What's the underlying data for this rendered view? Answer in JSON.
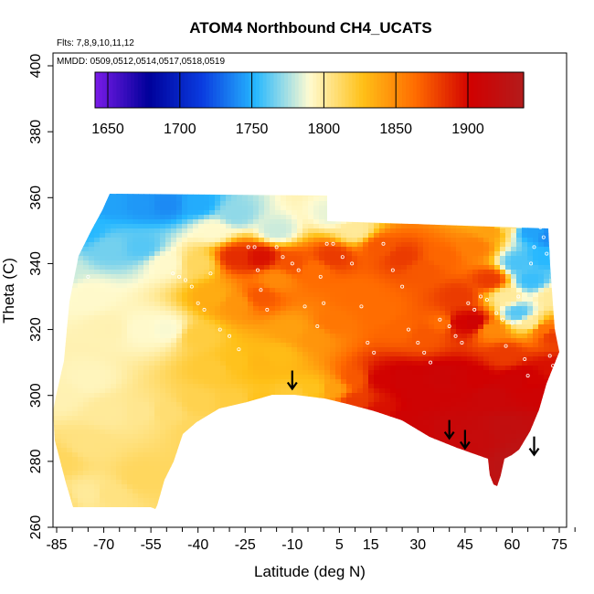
{
  "chart_data": {
    "type": "heatmap",
    "title": "ATOM4 Northbound CH4_UCATS",
    "subtitle_flights": "Flts: 7,8,9,10,11,12",
    "subtitle_dates": "MMDD: 0509,0512,0514,0517,0518,0519",
    "xlabel": "Latitude (deg N)",
    "ylabel": "Theta (C)",
    "xlim": [
      -88,
      82
    ],
    "ylim": [
      260,
      404
    ],
    "x_ticks": [
      -85,
      -70,
      -55,
      -40,
      -25,
      -10,
      5,
      15,
      30,
      45,
      60,
      75
    ],
    "x_minor_ticks": [
      -80,
      -75,
      -65,
      -60,
      -50,
      -45,
      -35,
      -30,
      -20,
      -15,
      -5,
      0,
      10,
      20,
      25,
      35,
      40,
      50,
      55,
      65,
      70,
      80
    ],
    "y_ticks": [
      260,
      280,
      300,
      320,
      340,
      360,
      380,
      400
    ],
    "colorbar": {
      "range": [
        1640,
        1938
      ],
      "ticks": [
        1650,
        1700,
        1750,
        1800,
        1850,
        1900
      ],
      "colors": [
        "#7a1be8",
        "#00009a",
        "#0a3ce0",
        "#26b8ff",
        "#fffbd0",
        "#ffc017",
        "#ff6a00",
        "#d10000",
        "#b31c1c"
      ]
    },
    "field_points": [
      [
        -84,
        338,
        1780
      ],
      [
        -84,
        300,
        1795
      ],
      [
        -84,
        280,
        1812
      ],
      [
        -84,
        268,
        1808
      ],
      [
        -75,
        350,
        1752
      ],
      [
        -75,
        330,
        1790
      ],
      [
        -75,
        305,
        1793
      ],
      [
        -75,
        285,
        1805
      ],
      [
        -75,
        270,
        1800
      ],
      [
        -68,
        358,
        1745
      ],
      [
        -68,
        345,
        1765
      ],
      [
        -68,
        320,
        1795
      ],
      [
        -68,
        295,
        1800
      ],
      [
        -68,
        270,
        1805
      ],
      [
        -58,
        358,
        1742
      ],
      [
        -58,
        345,
        1760
      ],
      [
        -58,
        320,
        1790
      ],
      [
        -58,
        295,
        1802
      ],
      [
        -58,
        275,
        1812
      ],
      [
        -50,
        358,
        1738
      ],
      [
        -50,
        340,
        1790
      ],
      [
        -50,
        320,
        1788
      ],
      [
        -50,
        295,
        1808
      ],
      [
        -40,
        358,
        1748
      ],
      [
        -40,
        340,
        1812
      ],
      [
        -40,
        318,
        1818
      ],
      [
        -40,
        298,
        1815
      ],
      [
        -40,
        290,
        1812
      ],
      [
        -35,
        350,
        1790
      ],
      [
        -35,
        330,
        1835
      ],
      [
        -35,
        308,
        1820
      ],
      [
        -28,
        355,
        1770
      ],
      [
        -28,
        342,
        1885
      ],
      [
        -28,
        328,
        1845
      ],
      [
        -28,
        310,
        1825
      ],
      [
        -28,
        298,
        1818
      ],
      [
        -20,
        342,
        1895
      ],
      [
        -20,
        330,
        1870
      ],
      [
        -20,
        310,
        1830
      ],
      [
        -20,
        298,
        1825
      ],
      [
        -15,
        350,
        1780
      ],
      [
        -15,
        335,
        1850
      ],
      [
        -15,
        312,
        1828
      ],
      [
        -10,
        340,
        1872
      ],
      [
        -10,
        320,
        1840
      ],
      [
        -10,
        300,
        1820
      ],
      [
        -3,
        338,
        1862
      ],
      [
        -3,
        318,
        1845
      ],
      [
        -3,
        302,
        1825
      ],
      [
        3,
        355,
        1785
      ],
      [
        3,
        342,
        1880
      ],
      [
        3,
        322,
        1858
      ],
      [
        3,
        302,
        1840
      ],
      [
        10,
        350,
        1800
      ],
      [
        10,
        330,
        1862
      ],
      [
        10,
        305,
        1870
      ],
      [
        10,
        298,
        1880
      ],
      [
        18,
        345,
        1870
      ],
      [
        18,
        325,
        1862
      ],
      [
        18,
        305,
        1900
      ],
      [
        18,
        295,
        1895
      ],
      [
        25,
        342,
        1880
      ],
      [
        25,
        320,
        1865
      ],
      [
        25,
        305,
        1905
      ],
      [
        25,
        292,
        1905
      ],
      [
        32,
        338,
        1870
      ],
      [
        32,
        318,
        1870
      ],
      [
        32,
        300,
        1905
      ],
      [
        32,
        290,
        1908
      ],
      [
        38,
        342,
        1865
      ],
      [
        38,
        322,
        1862
      ],
      [
        38,
        305,
        1908
      ],
      [
        38,
        290,
        1912
      ],
      [
        43,
        330,
        1880
      ],
      [
        43,
        322,
        1900
      ],
      [
        43,
        305,
        1905
      ],
      [
        43,
        288,
        1912
      ],
      [
        48,
        345,
        1855
      ],
      [
        48,
        322,
        1905
      ],
      [
        48,
        305,
        1902
      ],
      [
        48,
        288,
        1915
      ],
      [
        53,
        350,
        1840
      ],
      [
        53,
        335,
        1880
      ],
      [
        53,
        320,
        1850
      ],
      [
        53,
        300,
        1910
      ],
      [
        58,
        352,
        1810
      ],
      [
        58,
        330,
        1800
      ],
      [
        58,
        312,
        1880
      ],
      [
        58,
        290,
        1920
      ],
      [
        62,
        355,
        1775
      ],
      [
        62,
        340,
        1758
      ],
      [
        62,
        325,
        1760
      ],
      [
        62,
        305,
        1905
      ],
      [
        62,
        280,
        1928
      ],
      [
        66,
        350,
        1745
      ],
      [
        66,
        335,
        1755
      ],
      [
        66,
        322,
        1800
      ],
      [
        66,
        305,
        1900
      ],
      [
        66,
        285,
        1925
      ],
      [
        70,
        355,
        1725
      ],
      [
        70,
        342,
        1752
      ],
      [
        70,
        320,
        1860
      ],
      [
        70,
        300,
        1905
      ],
      [
        70,
        290,
        1918
      ],
      [
        73,
        348,
        1738
      ],
      [
        73,
        330,
        1800
      ],
      [
        73,
        318,
        1880
      ],
      [
        73,
        308,
        1895
      ]
    ],
    "sample_points": [
      [
        -75,
        336
      ],
      [
        -48,
        337
      ],
      [
        -46,
        336
      ],
      [
        -44,
        335
      ],
      [
        -42,
        333
      ],
      [
        -40,
        328
      ],
      [
        -38,
        326
      ],
      [
        -36,
        337
      ],
      [
        -33,
        320
      ],
      [
        -30,
        318
      ],
      [
        -27,
        314
      ],
      [
        -24,
        345
      ],
      [
        -22,
        345
      ],
      [
        -21,
        338
      ],
      [
        -20,
        332
      ],
      [
        -18,
        326
      ],
      [
        -15,
        345
      ],
      [
        -13,
        342
      ],
      [
        -10,
        340
      ],
      [
        -8,
        338
      ],
      [
        -6,
        327
      ],
      [
        -2,
        321
      ],
      [
        -1,
        336
      ],
      [
        0,
        328
      ],
      [
        1,
        346
      ],
      [
        3,
        346
      ],
      [
        6,
        342
      ],
      [
        9,
        340
      ],
      [
        12,
        327
      ],
      [
        14,
        316
      ],
      [
        16,
        313
      ],
      [
        19,
        346
      ],
      [
        22,
        338
      ],
      [
        25,
        333
      ],
      [
        27,
        320
      ],
      [
        30,
        316
      ],
      [
        32,
        313
      ],
      [
        34,
        310
      ],
      [
        37,
        323
      ],
      [
        40,
        321
      ],
      [
        42,
        318
      ],
      [
        44,
        316
      ],
      [
        46,
        328
      ],
      [
        48,
        326
      ],
      [
        50,
        330
      ],
      [
        52,
        329
      ],
      [
        55,
        325
      ],
      [
        57,
        323
      ],
      [
        58,
        315
      ],
      [
        60,
        322
      ],
      [
        62,
        330
      ],
      [
        64,
        311
      ],
      [
        65,
        306
      ],
      [
        66,
        340
      ],
      [
        67,
        345
      ],
      [
        68,
        354
      ],
      [
        69,
        351
      ],
      [
        70,
        348
      ],
      [
        71,
        343
      ],
      [
        72,
        312
      ],
      [
        73,
        309
      ],
      [
        74,
        305
      ]
    ],
    "arrow_markers": [
      {
        "lat": -10,
        "theta": 302
      },
      {
        "lat": 40,
        "theta": 287
      },
      {
        "lat": 45,
        "theta": 284
      },
      {
        "lat": 67,
        "theta": 282
      }
    ]
  }
}
